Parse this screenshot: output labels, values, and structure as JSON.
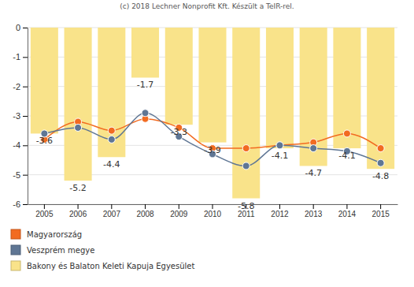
{
  "chart_data": {
    "type": "bar",
    "title": "(c) 2018 Lechner Nonprofit Kft. Készült a TeIR-rel.",
    "categories": [
      "2005",
      "2006",
      "2007",
      "2008",
      "2009",
      "2010",
      "2011",
      "2012",
      "2013",
      "2014",
      "2015"
    ],
    "series": [
      {
        "name": "Magyarország",
        "type": "line",
        "color": "#f26b21",
        "marker": "circle",
        "values": [
          -3.8,
          -3.2,
          -3.5,
          -3.1,
          -3.4,
          -4.1,
          -4.1,
          -4.0,
          -3.9,
          -3.6,
          -4.1
        ]
      },
      {
        "name": "Veszprém megye",
        "type": "line",
        "color": "#5f7694",
        "marker": "circle",
        "values": [
          -3.6,
          -3.4,
          -3.8,
          -2.9,
          -3.7,
          -4.3,
          -4.7,
          -4.0,
          -4.1,
          -4.2,
          -4.6
        ]
      },
      {
        "name": "Bakony és Balaton Keleti Kapuja Egyesület",
        "type": "bar",
        "color": "#f9e38a",
        "data_labels": true,
        "values": [
          -3.6,
          -5.2,
          -4.4,
          -1.7,
          -3.3,
          -3.9,
          -5.8,
          -4.1,
          -4.7,
          -4.1,
          -4.8
        ]
      }
    ],
    "ylim": [
      -6,
      0
    ],
    "yticks": [
      -6,
      -5,
      -4,
      -3,
      -2,
      -1,
      0
    ],
    "grid": true,
    "legend": "bottom"
  }
}
